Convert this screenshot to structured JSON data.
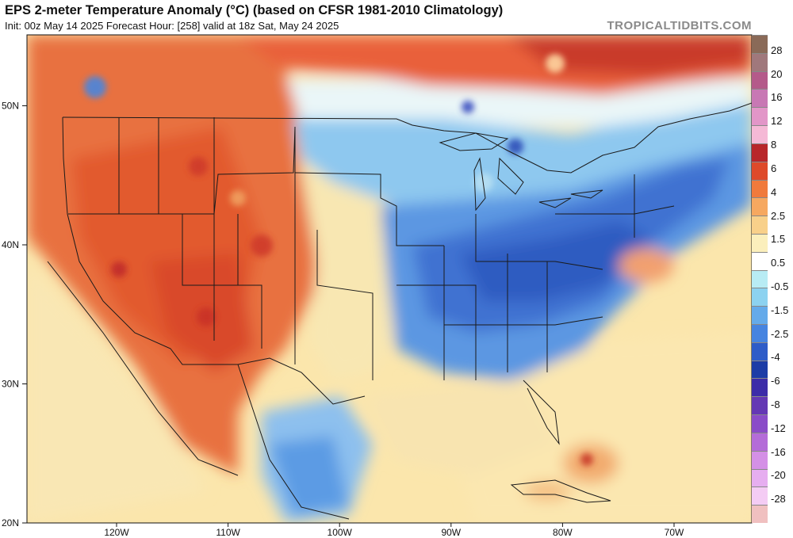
{
  "header": {
    "title": "EPS 2-meter Temperature Anomaly (°C) (based on CFSR 1981-2010 Climatology)",
    "subtitle": "Init: 00z May 14 2025   Forecast Hour: [258]   valid at 18z Sat, May 24 2025",
    "brand": "TROPICALTIDBITS.COM"
  },
  "map": {
    "lat_labels": [
      {
        "text": "50N",
        "lat": 50
      },
      {
        "text": "40N",
        "lat": 40
      },
      {
        "text": "30N",
        "lat": 30
      },
      {
        "text": "20N",
        "lat": 20
      }
    ],
    "lon_labels": [
      {
        "text": "120W",
        "lon": -120
      },
      {
        "text": "110W",
        "lon": -110
      },
      {
        "text": "100W",
        "lon": -100
      },
      {
        "text": "90W",
        "lon": -90
      },
      {
        "text": "80W",
        "lon": -80
      },
      {
        "text": "70W",
        "lon": -70
      }
    ]
  },
  "colorbar": {
    "labels": [
      "28",
      "20",
      "16",
      "12",
      "8",
      "6",
      "4",
      "2.5",
      "1.5",
      "0.5",
      "-0.5",
      "-1.5",
      "-2.5",
      "-4",
      "-6",
      "-8",
      "-12",
      "-16",
      "-20",
      "-28"
    ],
    "colors": [
      "#8a6a58",
      "#a0787c",
      "#b45a8a",
      "#c878b4",
      "#e296c8",
      "#f5b9d6",
      "#b8262a",
      "#de4a2a",
      "#f07a3c",
      "#f6a860",
      "#f8d08a",
      "#fbefbc",
      "#ffffff",
      "#b8ecf4",
      "#8cd2f0",
      "#64aaea",
      "#4684e0",
      "#2e5cc8",
      "#1c3ca6",
      "#3c2ca8",
      "#6438b4",
      "#8a4cc8",
      "#b46cd8",
      "#d490e6",
      "#e6aef0",
      "#f4ccf4",
      "#f0c0c0"
    ]
  }
}
